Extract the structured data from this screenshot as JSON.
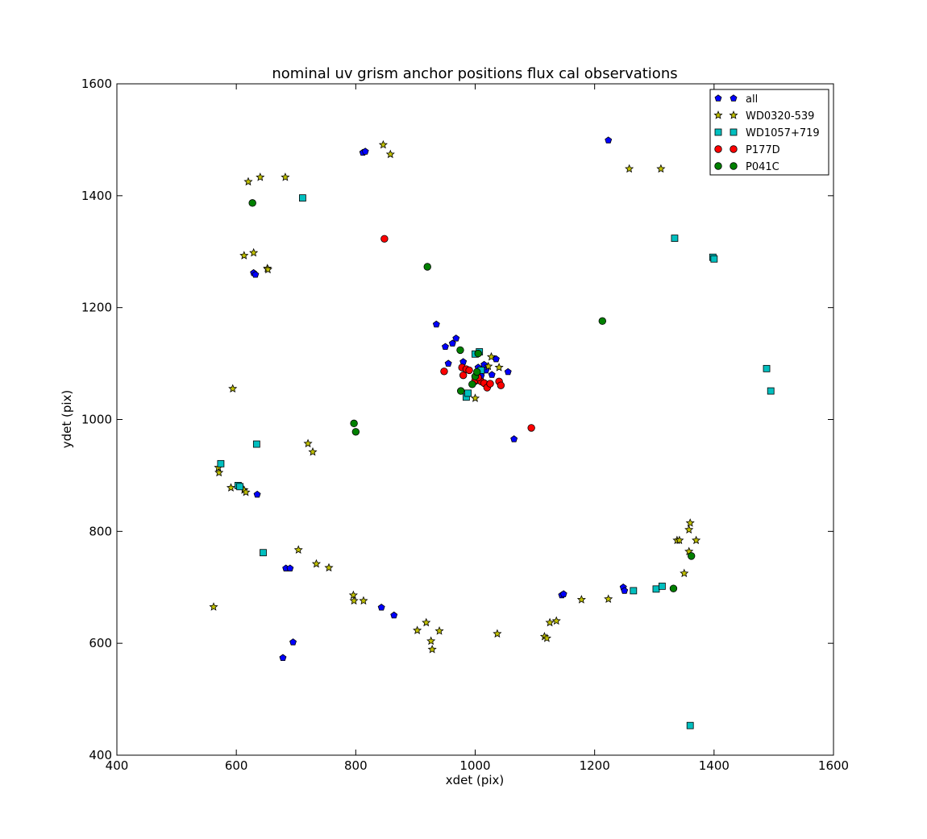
{
  "chart_data": {
    "type": "scatter",
    "title": "nominal uv grism anchor positions flux cal observations",
    "xlabel": "xdet (pix)",
    "ylabel": "ydet (pix)",
    "xlim": [
      400,
      1600
    ],
    "ylim": [
      400,
      1600
    ],
    "xticks": [
      400,
      600,
      800,
      1000,
      1200,
      1400,
      1600
    ],
    "yticks": [
      400,
      600,
      800,
      1000,
      1200,
      1400,
      1600
    ],
    "grid": false,
    "legend_placement": "top-right",
    "series": [
      {
        "name": "all",
        "marker": "pentagon",
        "color": "#0000ff",
        "points": [
          [
            812,
            1477
          ],
          [
            816,
            1479
          ],
          [
            1223,
            1499
          ],
          [
            629,
            1262
          ],
          [
            632,
            1259
          ],
          [
            935,
            1170
          ],
          [
            950,
            1130
          ],
          [
            962,
            1136
          ],
          [
            968,
            1145
          ],
          [
            955,
            1100
          ],
          [
            980,
            1103
          ],
          [
            1005,
            1093
          ],
          [
            1015,
            1098
          ],
          [
            1035,
            1108
          ],
          [
            1055,
            1085
          ],
          [
            1010,
            1078
          ],
          [
            1028,
            1080
          ],
          [
            1018,
            1088
          ],
          [
            1065,
            965
          ],
          [
            635,
            866
          ],
          [
            683,
            734
          ],
          [
            690,
            734
          ],
          [
            695,
            602
          ],
          [
            678,
            574
          ],
          [
            843,
            664
          ],
          [
            864,
            650
          ],
          [
            1145,
            686
          ],
          [
            1148,
            688
          ],
          [
            1248,
            700
          ],
          [
            1250,
            694
          ]
        ]
      },
      {
        "name": "WD0320-539",
        "marker": "star",
        "color": "#bfbf00",
        "points": [
          [
            620,
            1425
          ],
          [
            640,
            1433
          ],
          [
            682,
            1433
          ],
          [
            846,
            1491
          ],
          [
            858,
            1474
          ],
          [
            1258,
            1448
          ],
          [
            1311,
            1448
          ],
          [
            613,
            1293
          ],
          [
            629,
            1298
          ],
          [
            652,
            1270
          ],
          [
            653,
            1268
          ],
          [
            594,
            1055
          ],
          [
            720,
            957
          ],
          [
            728,
            942
          ],
          [
            570,
            914
          ],
          [
            571,
            905
          ],
          [
            591,
            878
          ],
          [
            613,
            874
          ],
          [
            616,
            870
          ],
          [
            704,
            767
          ],
          [
            734,
            742
          ],
          [
            755,
            735
          ],
          [
            562,
            665
          ],
          [
            796,
            686
          ],
          [
            797,
            676
          ],
          [
            813,
            676
          ],
          [
            903,
            623
          ],
          [
            918,
            637
          ],
          [
            926,
            604
          ],
          [
            928,
            589
          ],
          [
            940,
            622
          ],
          [
            1037,
            617
          ],
          [
            1116,
            612
          ],
          [
            1120,
            609
          ],
          [
            1125,
            637
          ],
          [
            1136,
            640
          ],
          [
            1178,
            678
          ],
          [
            1223,
            679
          ],
          [
            1338,
            784
          ],
          [
            1342,
            784
          ],
          [
            1358,
            803
          ],
          [
            1360,
            815
          ],
          [
            1370,
            784
          ],
          [
            1358,
            764
          ],
          [
            1350,
            725
          ],
          [
            1027,
            1112
          ],
          [
            1040,
            1093
          ],
          [
            1000,
            1038
          ],
          [
            1005,
            1068
          ],
          [
            1022,
            1095
          ]
        ]
      },
      {
        "name": "WD1057+719",
        "marker": "square",
        "color": "#00bfbf",
        "points": [
          [
            711,
            1396
          ],
          [
            1334,
            1324
          ],
          [
            1398,
            1290
          ],
          [
            1400,
            1287
          ],
          [
            1488,
            1091
          ],
          [
            1495,
            1051
          ],
          [
            634,
            956
          ],
          [
            574,
            921
          ],
          [
            603,
            882
          ],
          [
            606,
            880
          ],
          [
            645,
            762
          ],
          [
            1265,
            694
          ],
          [
            1303,
            697
          ],
          [
            1313,
            702
          ],
          [
            1360,
            453
          ],
          [
            1000,
            1117
          ],
          [
            1007,
            1121
          ],
          [
            985,
            1040
          ],
          [
            988,
            1047
          ],
          [
            1010,
            1088
          ]
        ]
      },
      {
        "name": "P177D",
        "marker": "circle",
        "color": "#ff0000",
        "points": [
          [
            848,
            1323
          ],
          [
            948,
            1086
          ],
          [
            978,
            1093
          ],
          [
            980,
            1079
          ],
          [
            985,
            1090
          ],
          [
            1000,
            1070
          ],
          [
            1010,
            1068
          ],
          [
            1015,
            1065
          ],
          [
            1020,
            1057
          ],
          [
            1025,
            1064
          ],
          [
            1040,
            1068
          ],
          [
            1043,
            1061
          ],
          [
            1094,
            985
          ],
          [
            1005,
            1075
          ],
          [
            990,
            1088
          ]
        ]
      },
      {
        "name": "P041C",
        "marker": "circle",
        "color": "#008000",
        "points": [
          [
            627,
            1387
          ],
          [
            920,
            1273
          ],
          [
            975,
            1124
          ],
          [
            1005,
            1118
          ],
          [
            1213,
            1176
          ],
          [
            797,
            993
          ],
          [
            800,
            978
          ],
          [
            976,
            1051
          ],
          [
            995,
            1063
          ],
          [
            1000,
            1077
          ],
          [
            1003,
            1085
          ],
          [
            1332,
            698
          ],
          [
            1362,
            756
          ]
        ]
      }
    ]
  }
}
